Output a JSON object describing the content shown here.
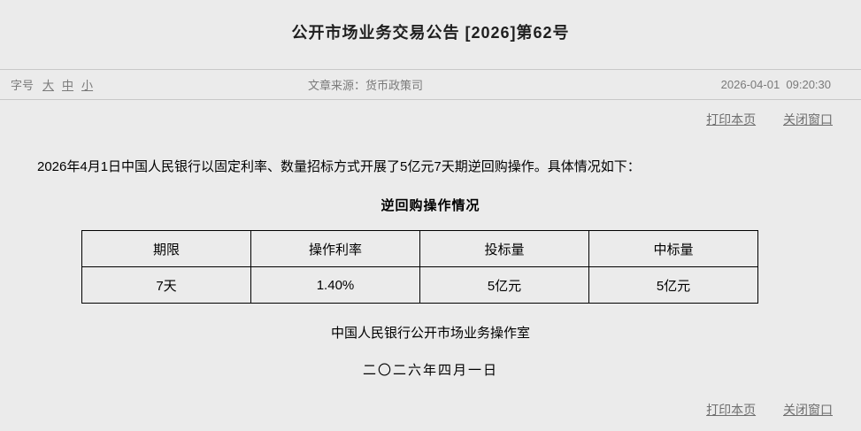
{
  "page": {
    "title": "公开市场业务交易公告 [2026]第62号"
  },
  "meta_bar": {
    "font_size_label": "字号",
    "font_size_options": [
      {
        "label": "大"
      },
      {
        "label": "中"
      },
      {
        "label": "小"
      }
    ],
    "source_label": "文章来源：",
    "source_value": "货币政策司",
    "timestamp": "2026-04-01  09:20:30"
  },
  "actions": {
    "print_label": "打印本页",
    "close_label": "关闭窗口"
  },
  "article": {
    "body": "2026年4月1日中国人民银行以固定利率、数量招标方式开展了5亿元7天期逆回购操作。具体情况如下：",
    "table_title": "逆回购操作情况",
    "table": {
      "headers": [
        "期限",
        "操作利率",
        "投标量",
        "中标量"
      ],
      "rows": [
        [
          "7天",
          "1.40%",
          "5亿元",
          "5亿元"
        ]
      ]
    },
    "signature": "中国人民银行公开市场业务操作室",
    "date": "二〇二六年四月一日"
  },
  "colors": {
    "page_bg": "#ebebeb",
    "divider": "#c8c8c8",
    "muted_text": "#7a7a7a",
    "link_text": "#6e6e6e",
    "body_text": "#000000",
    "title_text": "#1f1f1f",
    "table_border": "#000000"
  }
}
